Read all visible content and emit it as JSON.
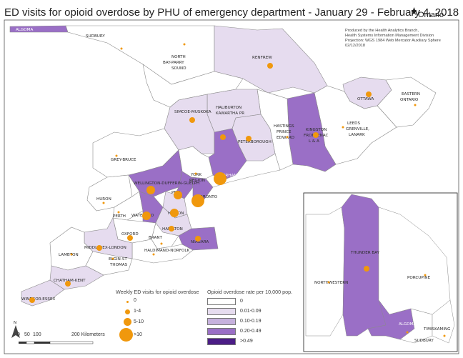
{
  "title": "ED visits for opioid overdose by PHU of emergency department - January 29 - February 4, 2018",
  "brand": "Ontario",
  "credits": [
    "Produced by the Health Analytics Branch,",
    "Health Systems Information Management Division",
    "Projection: WGS 1984 Web Mercator Auxiliary Sphere",
    "02/12/2018"
  ],
  "colors": {
    "rate_0": "#ffffff",
    "rate_1": "#e6dcef",
    "rate_2": "#c6b1dd",
    "rate_3": "#9a6fc6",
    "rate_4": "#4b1d86",
    "dot": "#f0980d",
    "water": "#ffffff",
    "border": "#8a8a8a"
  },
  "regions": {
    "algoma": "ALGOMA",
    "sudbury": "SUDBURY",
    "north_bay": [
      "NORTH",
      "BAY-PARRY",
      "SOUND"
    ],
    "renfrew": "RENFREW",
    "ottawa": "OTTAWA",
    "eastern": [
      "EASTERN",
      "ONTARIO"
    ],
    "simcoe": "SIMCOE-MUSKOKA",
    "haliburton": [
      "HALIBURTON",
      "KAWARTHA PR"
    ],
    "hastings": [
      "HASTINGS",
      "PRINCE",
      "EDWARD"
    ],
    "kingston": [
      "KINGSTON",
      "FRONTENAC",
      "L & A"
    ],
    "leeds": [
      "LEEDS",
      "GRENVILLE,",
      "LANARK"
    ],
    "peterborough": "PETERBOROUGH",
    "grey": "GREY-BRUCE",
    "york": [
      "YORK",
      "REGION"
    ],
    "durham": "DURHAM",
    "wdg": "WELLINGTON-DUFFERIN-GUELPH",
    "peel": "PEEL",
    "toronto": "TORONTO",
    "huron": "HURON",
    "perth": "PERTH",
    "waterloo": "WATERLOO",
    "halton": "HALTON",
    "hamilton": "HAMILTON",
    "oxford": "OXFORD",
    "brant": "BRANT",
    "niagara": "NIAGARA",
    "middlesex": "MIDDLESEX-LONDON",
    "haldimand": "HALDIMAND-NORFOLK",
    "lambton": "LAMBTON",
    "elgin": [
      "ELGIN-ST",
      "THOMAS"
    ],
    "chatham": "CHATHAM-KENT",
    "windsor": "WINDSOR-ESSEX",
    "thunder_bay": "THUNDER BAY",
    "northwestern": "NORTHWESTERN",
    "porcupine": "PORCUPINE",
    "algoma_inset": "ALGOMA",
    "timiskaming": "TIMISKAMING",
    "sudbury_inset": "SUDBURY"
  },
  "legend_dots": {
    "title": "Weekly ED visits for opioid overdose",
    "items": [
      "0",
      "1-4",
      "5-10",
      ">10"
    ]
  },
  "legend_rates": {
    "title": "Opioid overdose rate per 10,000 pop.",
    "items": [
      "0",
      "0.01-0.09",
      "0.10-0.19",
      "0.20-0.49",
      ">0.49"
    ]
  },
  "scale_bar": {
    "ticks": [
      "0",
      "50",
      "100",
      "200 Kilometers"
    ]
  }
}
